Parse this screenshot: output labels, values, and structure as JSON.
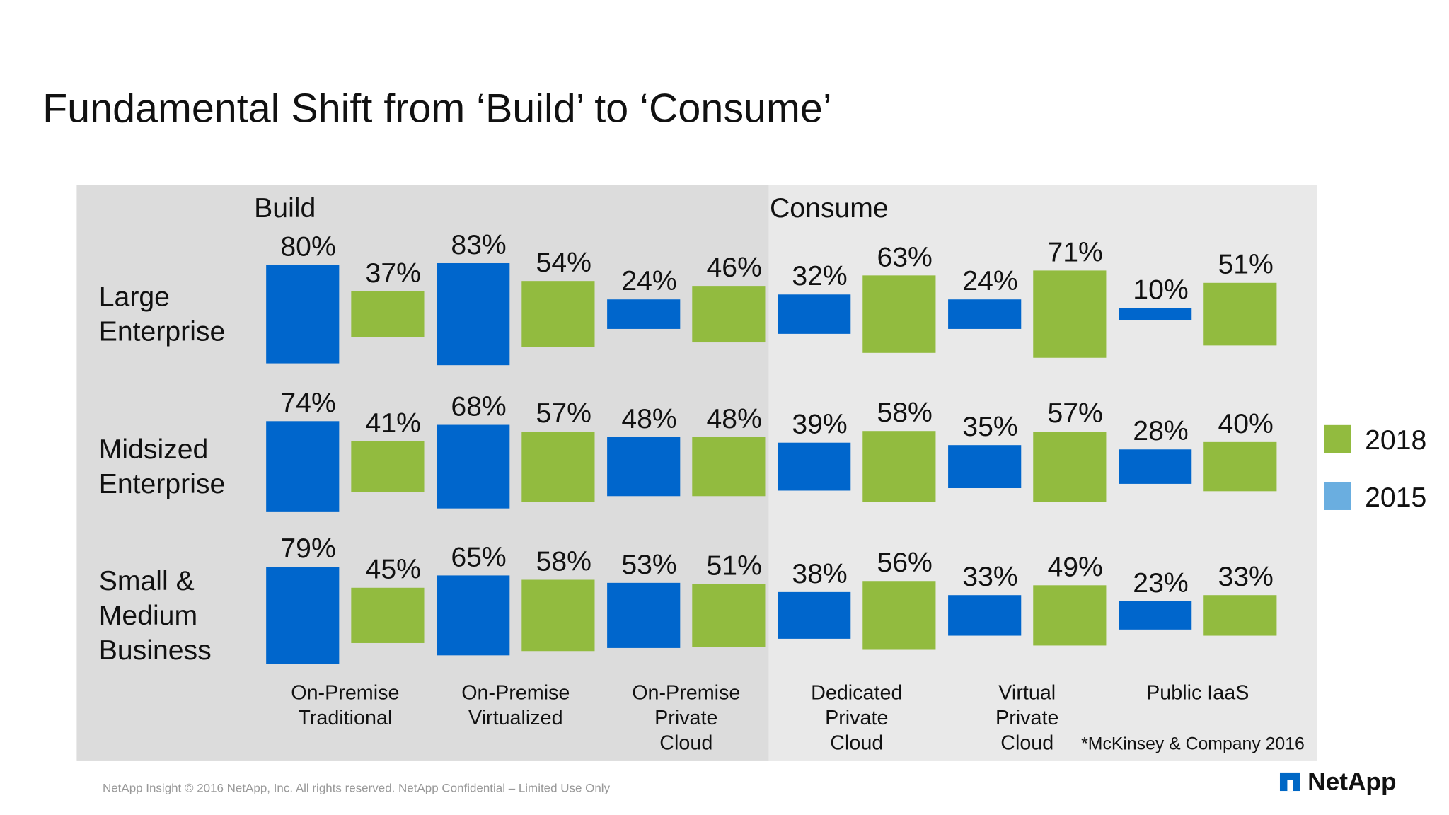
{
  "title": "Fundamental Shift from ‘Build’ to ‘Consume’",
  "chart_data": {
    "type": "floating-bar",
    "sections": [
      "Build",
      "Consume"
    ],
    "categories": [
      [
        "On-Premise",
        "Traditional"
      ],
      [
        "On-Premise",
        "Virtualized"
      ],
      [
        "On-Premise",
        "Private",
        "Cloud"
      ],
      [
        "Dedicated",
        "Private",
        "Cloud"
      ],
      [
        "Virtual",
        "Private",
        "Cloud"
      ],
      [
        "Public IaaS"
      ]
    ],
    "groups": [
      [
        "Large",
        "Enterprise"
      ],
      [
        "Midsized",
        "Enterprise"
      ],
      [
        "Small &",
        "Medium",
        "Business"
      ]
    ],
    "series": [
      {
        "name": "2015",
        "color": "#0066cc",
        "legend_color": "#6aaee0",
        "values": [
          [
            80,
            83,
            24,
            32,
            24,
            10
          ],
          [
            74,
            68,
            48,
            39,
            35,
            28
          ],
          [
            79,
            65,
            53,
            38,
            33,
            23
          ]
        ],
        "value_labels": [
          [
            "80%",
            "83%",
            "24%",
            "32%",
            "24%",
            "10%"
          ],
          [
            "74%",
            "68%",
            "48%",
            "39%",
            "35%",
            "28%"
          ],
          [
            "79%",
            "65%",
            "53%",
            "38%",
            "33%",
            "23%"
          ]
        ]
      },
      {
        "name": "2018",
        "color": "#92bb3f",
        "legend_color": "#92bb3f",
        "values": [
          [
            37,
            54,
            46,
            63,
            71,
            51
          ],
          [
            41,
            57,
            48,
            58,
            57,
            40
          ],
          [
            45,
            58,
            51,
            56,
            49,
            33
          ]
        ],
        "value_labels": [
          [
            "37%",
            "54%",
            "46%",
            "63%",
            "71%",
            "51%"
          ],
          [
            "41%",
            "57%",
            "48%",
            "58%",
            "57%",
            "40%"
          ],
          [
            "45%",
            "58%",
            "51%",
            "56%",
            "49%",
            "33%"
          ]
        ]
      }
    ],
    "legend_order": [
      1,
      0
    ],
    "source": "*McKinsey & Company 2016"
  },
  "footer": "NetApp Insight  © 2016 NetApp, Inc. All rights reserved. NetApp Confidential – Limited Use Only",
  "logo": "NetApp"
}
